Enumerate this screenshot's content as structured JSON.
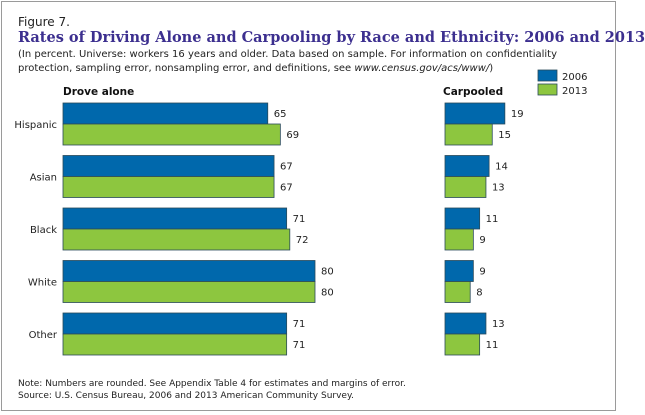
{
  "figure_label": "Figure 7.",
  "title": "Rates of Driving Alone and Carpooling by Race and Ethnicity: 2006 and 2013",
  "subtitle": "(In percent. Universe: workers 16 years and older. Data based on sample. For information on confidentiality protection, sampling error, nonsampling error, and definitions, see",
  "subtitle_link": "www.census.gov/acs/www/",
  "subtitle_end": ")",
  "note": "Note: Numbers are rounded. See Appendix Table 4 for estimates and margins of error.",
  "source": "Source: U.S. Census Bureau, 2006 and 2013 American Community Survey.",
  "colors": {
    "2006": "#0068ac",
    "2013": "#8dc63f",
    "title": "#3c2f8f"
  },
  "chart_data": [
    {
      "type": "bar",
      "orientation": "horizontal",
      "title": "Drove alone",
      "categories": [
        "Hispanic",
        "Asian",
        "Black",
        "White",
        "Other"
      ],
      "series": [
        {
          "name": "2006",
          "values": [
            65,
            67,
            71,
            80,
            71
          ]
        },
        {
          "name": "2013",
          "values": [
            69,
            67,
            72,
            80,
            71
          ]
        }
      ],
      "data_labels": true,
      "grid": false
    },
    {
      "type": "bar",
      "orientation": "horizontal",
      "title": "Carpooled",
      "categories": [
        "Hispanic",
        "Asian",
        "Black",
        "White",
        "Other"
      ],
      "series": [
        {
          "name": "2006",
          "values": [
            19,
            14,
            11,
            9,
            13
          ]
        },
        {
          "name": "2013",
          "values": [
            15,
            13,
            9,
            8,
            11
          ]
        }
      ],
      "data_labels": true,
      "grid": false,
      "legend": "top-right"
    }
  ]
}
